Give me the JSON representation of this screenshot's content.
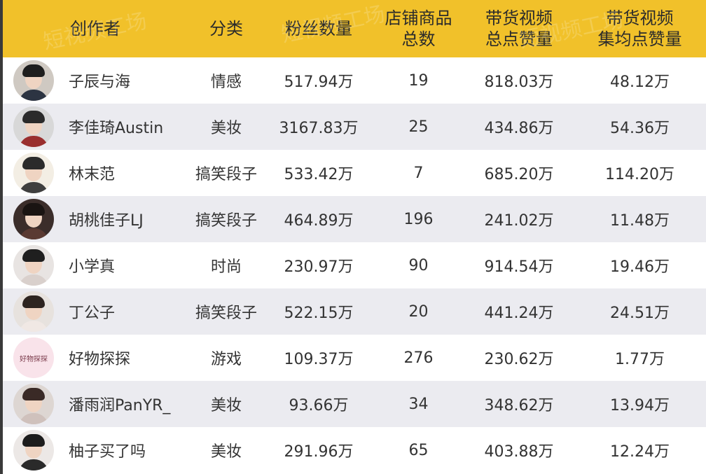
{
  "watermark": "短视频工场",
  "colors": {
    "header_bg": "#f1c12a",
    "row_odd": "#ffffff",
    "row_even": "#ebebf0",
    "text": "#333333"
  },
  "columns": {
    "creator": "创作者",
    "category": "分类",
    "fans": "粉丝数量",
    "products_line1": "店铺商品",
    "products_line2": "总数",
    "likes_line1": "带货视频",
    "likes_line2": "总点赞量",
    "avg_line1": "带货视频",
    "avg_line2": "集均点赞量"
  },
  "rows": [
    {
      "creator": "子辰与海",
      "category": "情感",
      "fans": "517.94万",
      "products": "19",
      "likes": "818.03万",
      "avg": "48.12万",
      "avatar": "avatar-man-suit-icon",
      "avatar_colors": {
        "bg": "#cfc9c2",
        "hair": "#1e1e1e",
        "body": "#2c3442"
      }
    },
    {
      "creator": "李佳琦Austin",
      "category": "美妆",
      "fans": "3167.83万",
      "products": "25",
      "likes": "434.86万",
      "avg": "54.36万",
      "avatar": "avatar-man-sunglasses-icon",
      "avatar_colors": {
        "bg": "#d8d8d8",
        "hair": "#2a2a2a",
        "body": "#9a2f2f"
      }
    },
    {
      "creator": "林末范",
      "category": "搞笑段子",
      "fans": "533.42万",
      "products": "7",
      "likes": "685.20万",
      "avg": "114.20万",
      "avatar": "avatar-boy-yellow-icon",
      "avatar_colors": {
        "bg": "#f3eee4",
        "hair": "#2b2b2b",
        "body": "#3f3f3f"
      }
    },
    {
      "creator": "胡桃佳子LJ",
      "category": "搞笑段子",
      "fans": "464.89万",
      "products": "196",
      "likes": "241.02万",
      "avg": "11.48万",
      "avatar": "avatar-woman-dark-icon",
      "avatar_colors": {
        "bg": "#3b2d2a",
        "hair": "#1a1412",
        "body": "#5a3a32"
      }
    },
    {
      "creator": "小学真",
      "category": "时尚",
      "fans": "230.97万",
      "products": "90",
      "likes": "914.54万",
      "avg": "19.46万",
      "avatar": "avatar-girl-bob-icon",
      "avatar_colors": {
        "bg": "#e8e4e2",
        "hair": "#1f1f1f",
        "body": "#d9d0cc"
      }
    },
    {
      "creator": "丁公子",
      "category": "搞笑段子",
      "fans": "522.15万",
      "products": "20",
      "likes": "441.24万",
      "avg": "24.51万",
      "avatar": "avatar-girl-flower-icon",
      "avatar_colors": {
        "bg": "#e7e2de",
        "hair": "#2d2420",
        "body": "#f0e8e4"
      }
    },
    {
      "creator": "好物探探",
      "category": "游戏",
      "fans": "109.37万",
      "products": "276",
      "likes": "230.62万",
      "avg": "1.77万",
      "avatar": "avatar-text-logo-icon",
      "avatar_label": "好物探探",
      "avatar_colors": {
        "bg": "#f9e3ea",
        "hair": "#f9e3ea",
        "body": "#f9e3ea"
      }
    },
    {
      "creator": "潘雨润PanYR_",
      "category": "美妆",
      "fans": "93.66万",
      "products": "34",
      "likes": "348.62万",
      "avg": "13.94万",
      "avatar": "avatar-woman-long-hair-icon",
      "avatar_colors": {
        "bg": "#ddd6d2",
        "hair": "#3a2a26",
        "body": "#cfc1bc"
      }
    },
    {
      "creator": "柚子买了吗",
      "category": "美妆",
      "fans": "291.96万",
      "products": "65",
      "likes": "403.88万",
      "avg": "12.24万",
      "avatar": "avatar-woman-hat-icon",
      "avatar_colors": {
        "bg": "#ece8e6",
        "hair": "#1c1c1c",
        "body": "#2a2a2a"
      }
    }
  ]
}
